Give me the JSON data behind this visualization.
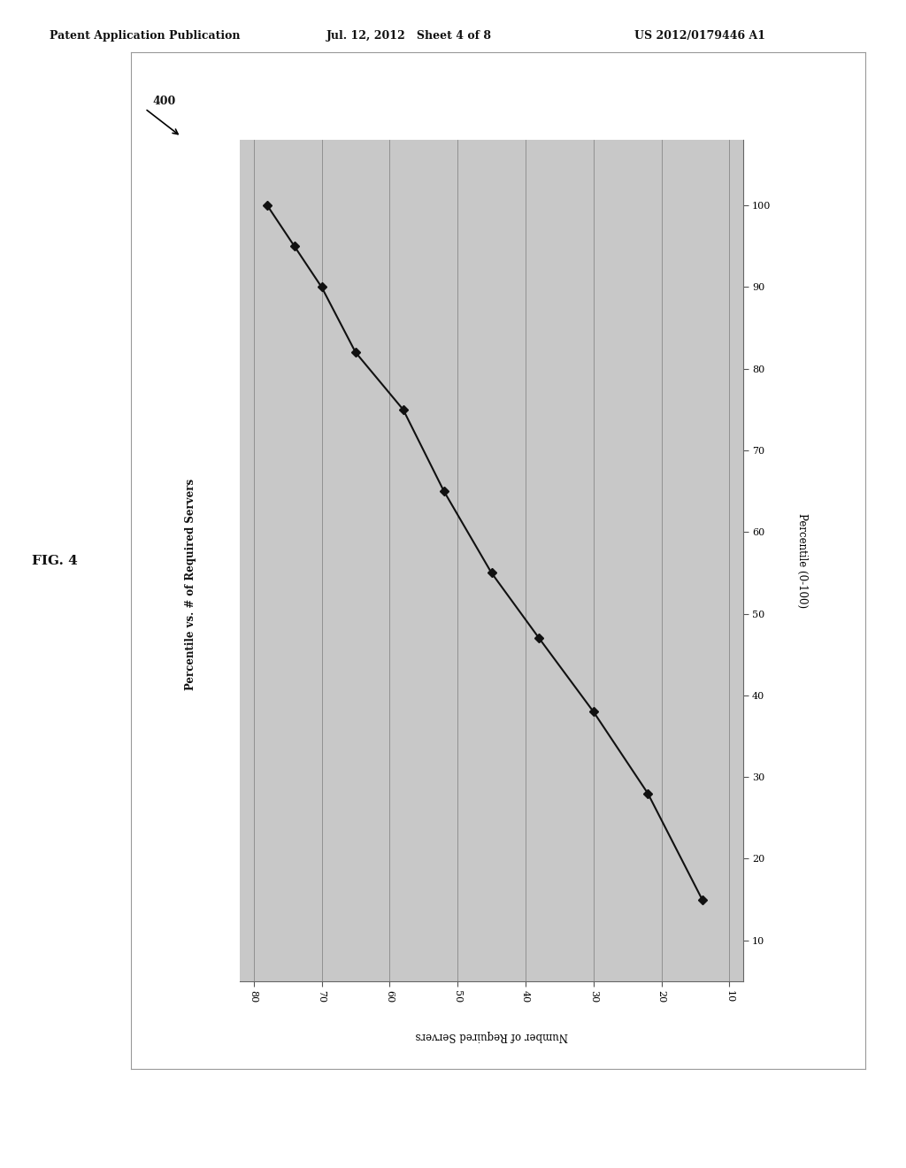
{
  "header_text_left": "Patent Application Publication",
  "header_text_mid": "Jul. 12, 2012   Sheet 4 of 8",
  "header_text_right": "US 2012/0179446 A1",
  "fig_label": "FIG. 4",
  "fig_number": "400",
  "chart_title": "Percentile vs. # of Required Servers",
  "xlabel": "Number of Required Servers",
  "ylabel": "Percentile (0-100)",
  "data_x": [
    78,
    74,
    70,
    65,
    58,
    52,
    45,
    38,
    30,
    22,
    14
  ],
  "data_y": [
    100,
    95,
    90,
    82,
    75,
    65,
    55,
    47,
    38,
    28,
    15
  ],
  "x_ticks": [
    80,
    70,
    60,
    50,
    40,
    30,
    20,
    10
  ],
  "y_ticks": [
    10,
    20,
    30,
    40,
    50,
    60,
    70,
    80,
    90,
    100
  ],
  "xlim": [
    82,
    8
  ],
  "ylim": [
    5,
    108
  ],
  "plot_bg_color": "#c8c8c8",
  "line_color": "#111111",
  "marker_color": "#111111",
  "bg_color": "#ffffff",
  "header_bar_color": "#222222",
  "grid_color": "#888888",
  "outer_border_color": "#aaaaaa"
}
